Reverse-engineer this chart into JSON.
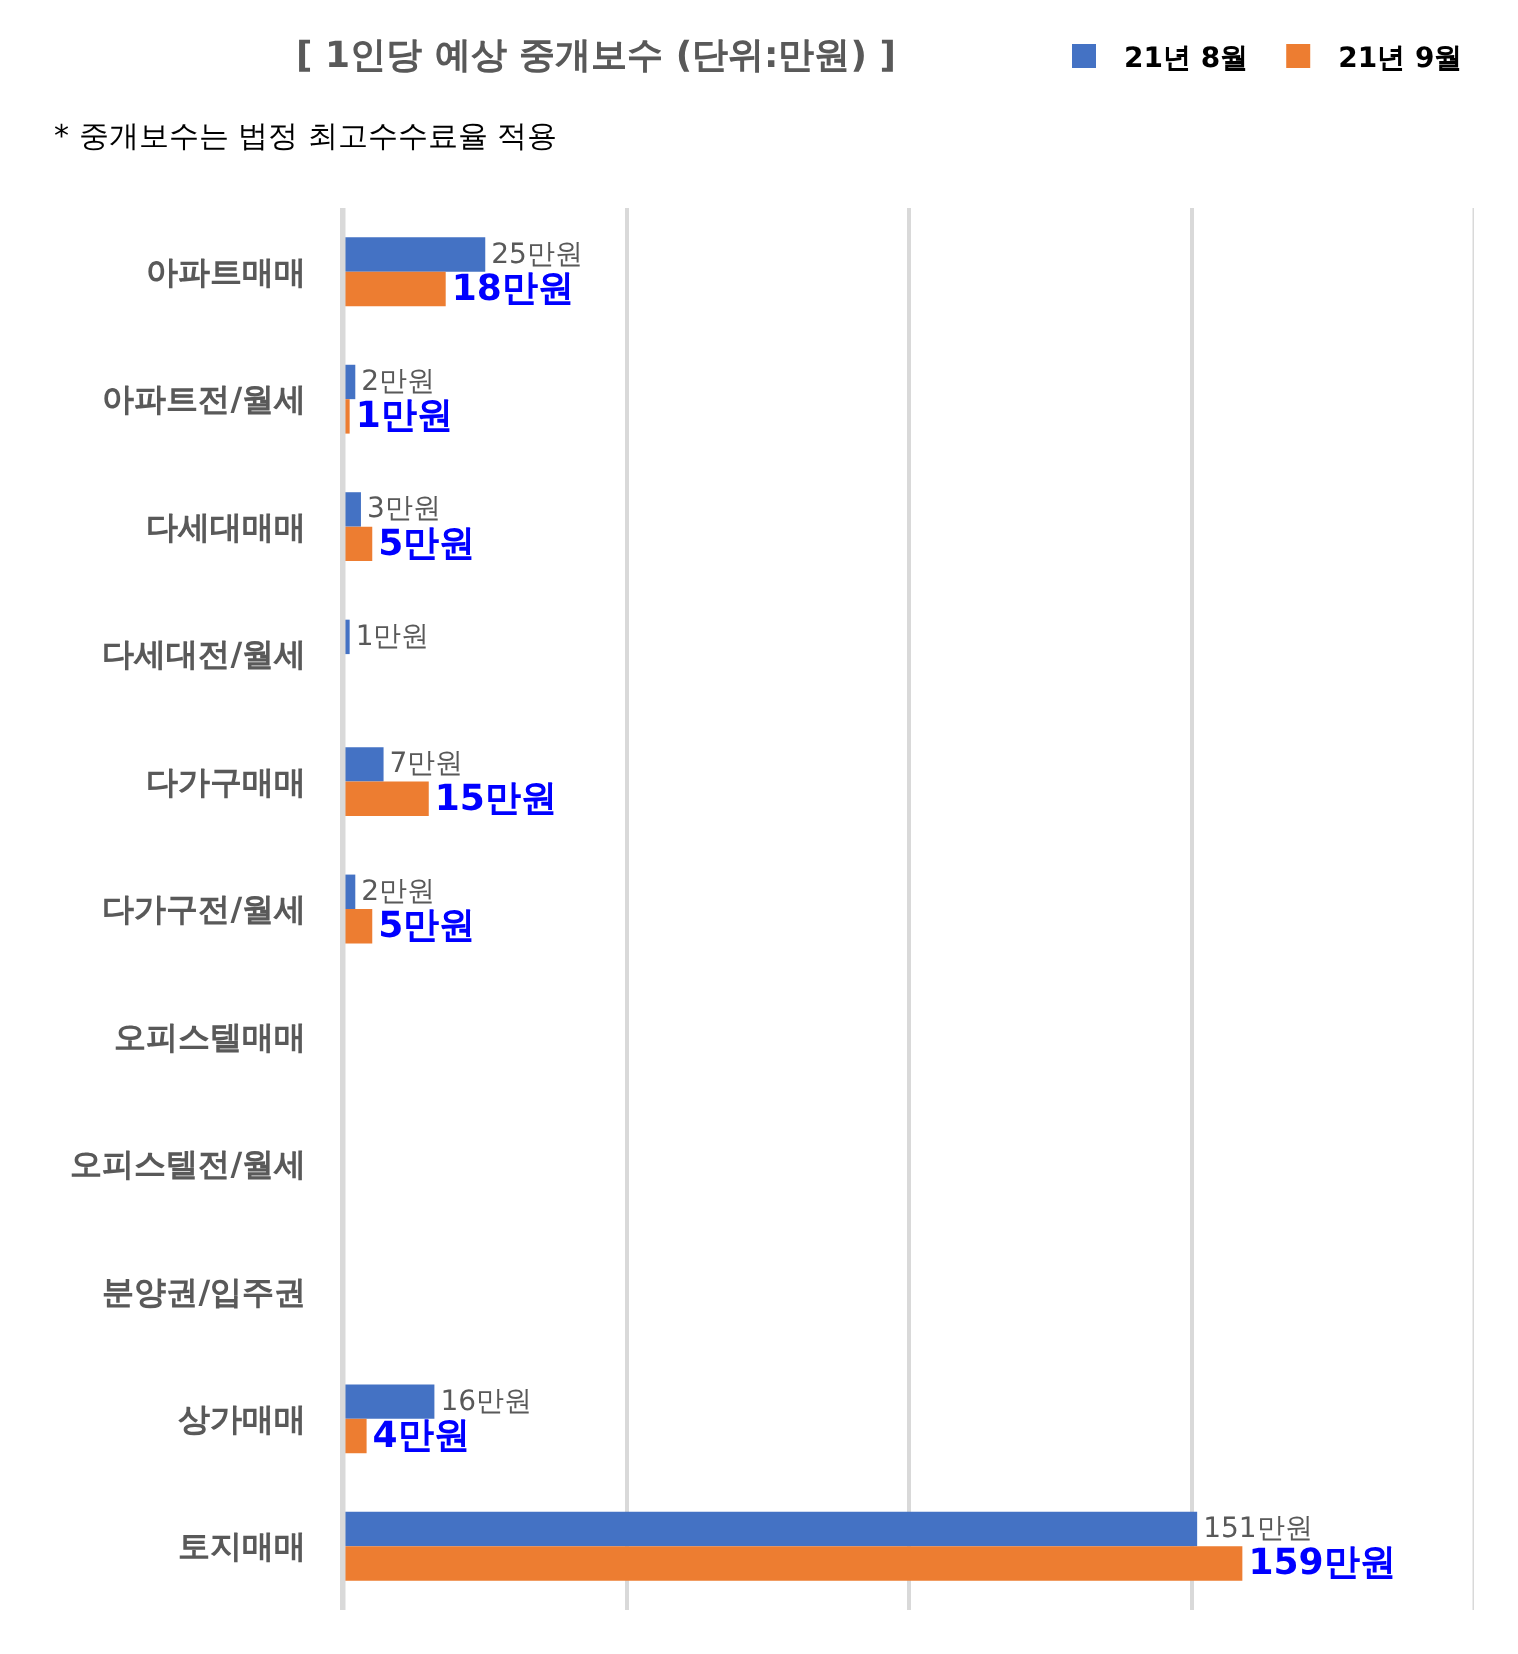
{
  "chart_data": {
    "type": "bar",
    "orientation": "horizontal",
    "title": "[ 1인당 예상 중개보수 (단위:만원) ]",
    "subtitle": "* 중개보수는 법정 최고수수료율 적용",
    "categories": [
      "아파트매매",
      "아파트전/월세",
      "다세대매매",
      "다세대전/월세",
      "다가구매매",
      "다가구전/월세",
      "오피스텔매매",
      "오피스텔전/월세",
      "분양권/입주권",
      "상가매매",
      "토지매매"
    ],
    "series": [
      {
        "name": "21년 8월",
        "color": "#4472c4",
        "values": [
          25,
          2,
          3,
          1,
          7,
          2,
          null,
          null,
          null,
          16,
          151
        ],
        "value_labels": [
          "25만원",
          "2만원",
          "3만원",
          "1만원",
          "7만원",
          "2만원",
          null,
          null,
          null,
          "16만원",
          "151만원"
        ]
      },
      {
        "name": "21년 9월",
        "color": "#ed7d31",
        "values": [
          18,
          1,
          5,
          null,
          15,
          5,
          null,
          null,
          null,
          4,
          159
        ],
        "value_labels": [
          "18만원",
          "1만원",
          "5만원",
          null,
          "15만원",
          "5만원",
          null,
          null,
          null,
          "4만원",
          "159만원"
        ]
      }
    ],
    "xlim": [
      0,
      200
    ],
    "xticks": [
      {
        "value": 0,
        "label": null
      },
      {
        "value": 50,
        "label": null
      },
      {
        "value": 100,
        "label": null
      },
      {
        "value": 150,
        "label": null
      },
      {
        "value": 200,
        "label": null
      }
    ],
    "grid": "x",
    "legend": "top right",
    "tick_labels": "y"
  }
}
